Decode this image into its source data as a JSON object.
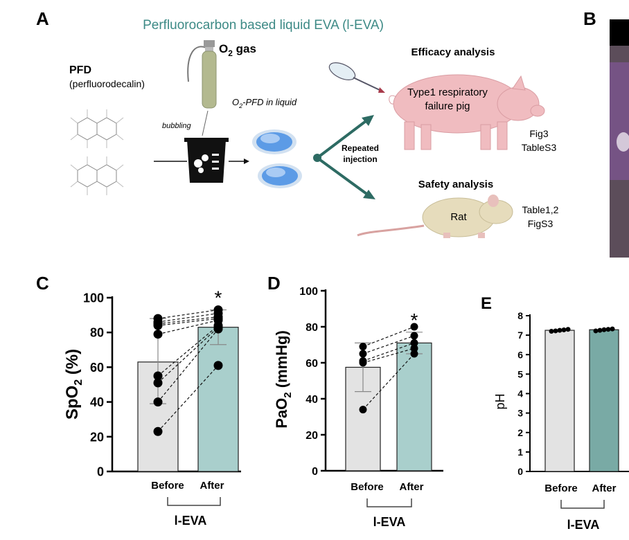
{
  "panels": {
    "A": "A",
    "B": "B",
    "C": "C",
    "D": "D",
    "E": "E"
  },
  "schematic": {
    "title": "Perfluorocarbon based liquid EVA (l-EVA)",
    "pfd_label": "PFD",
    "pfd_sub": "(perfluorodecalin)",
    "o2_gas_prefix": "O",
    "o2_gas_sub": "2",
    "o2_gas_suffix": " gas",
    "bubbling": "bubbling",
    "o2pfd_prefix": "O",
    "o2pfd_sub": "2",
    "o2pfd_suffix": "-PFD in liquid",
    "repeated_line1": "Repeated",
    "repeated_line2": "injection",
    "efficacy_title": "Efficacy analysis",
    "pig_line1": "Type1 respiratory",
    "pig_line2": "failure pig",
    "fig3": "Fig3",
    "tables3": "TableS3",
    "safety_title": "Safety analysis",
    "rat_label": "Rat",
    "table12": "Table1,2",
    "figs3": "FigS3"
  },
  "group_label": "l-EVA",
  "colors": {
    "before_bar": "#e3e3e3",
    "after_bar": "#a9cfcc",
    "after_bar_e": "#79aaa5",
    "arrow": "#2d6b63",
    "title_teal": "#3d8a86",
    "pig": "#f0bcc0",
    "rat": "#e6dcbc",
    "droplet": "#5c9be6"
  },
  "chart_data": [
    {
      "panel": "C",
      "type": "bar",
      "ylabel_main": "SpO",
      "ylabel_sub": "2",
      "ylabel_tail": " (%)",
      "categories": [
        "Before",
        "After"
      ],
      "values": [
        63,
        83
      ],
      "error_low": [
        39,
        73
      ],
      "error_high": [
        88,
        93
      ],
      "ylim": [
        0,
        100
      ],
      "yticks": [
        "0",
        "20",
        "40",
        "60",
        "80",
        "100"
      ],
      "significance": "*",
      "paired_points": [
        [
          88,
          93
        ],
        [
          86,
          91
        ],
        [
          85,
          89
        ],
        [
          84,
          88
        ],
        [
          79,
          87
        ],
        [
          55,
          84
        ],
        [
          51,
          83
        ],
        [
          40,
          82
        ],
        [
          23,
          61
        ]
      ]
    },
    {
      "panel": "D",
      "type": "bar",
      "ylabel_main": "PaO",
      "ylabel_sub": "2",
      "ylabel_tail": " (mmHg)",
      "categories": [
        "Before",
        "After"
      ],
      "values": [
        57.5,
        71
      ],
      "error_low": [
        44,
        65
      ],
      "error_high": [
        71,
        77
      ],
      "ylim": [
        0,
        100
      ],
      "yticks": [
        "0",
        "20",
        "40",
        "60",
        "80",
        "100"
      ],
      "significance": "*",
      "paired_points": [
        [
          69,
          80
        ],
        [
          65,
          75
        ],
        [
          61,
          71
        ],
        [
          60,
          68
        ],
        [
          34,
          65
        ]
      ]
    },
    {
      "panel": "E",
      "type": "bar",
      "ylabel_main": "pH",
      "ylabel_sub": "",
      "ylabel_tail": "",
      "categories": [
        "Before",
        "After"
      ],
      "values": [
        7.25,
        7.28
      ],
      "ylim": [
        0,
        8
      ],
      "yticks": [
        "0",
        "1",
        "2",
        "3",
        "4",
        "5",
        "6",
        "7",
        "8"
      ],
      "points": [
        [
          7.2,
          7.22,
          7.25,
          7.27,
          7.3
        ],
        [
          7.22,
          7.25,
          7.28,
          7.3,
          7.32
        ]
      ]
    }
  ]
}
